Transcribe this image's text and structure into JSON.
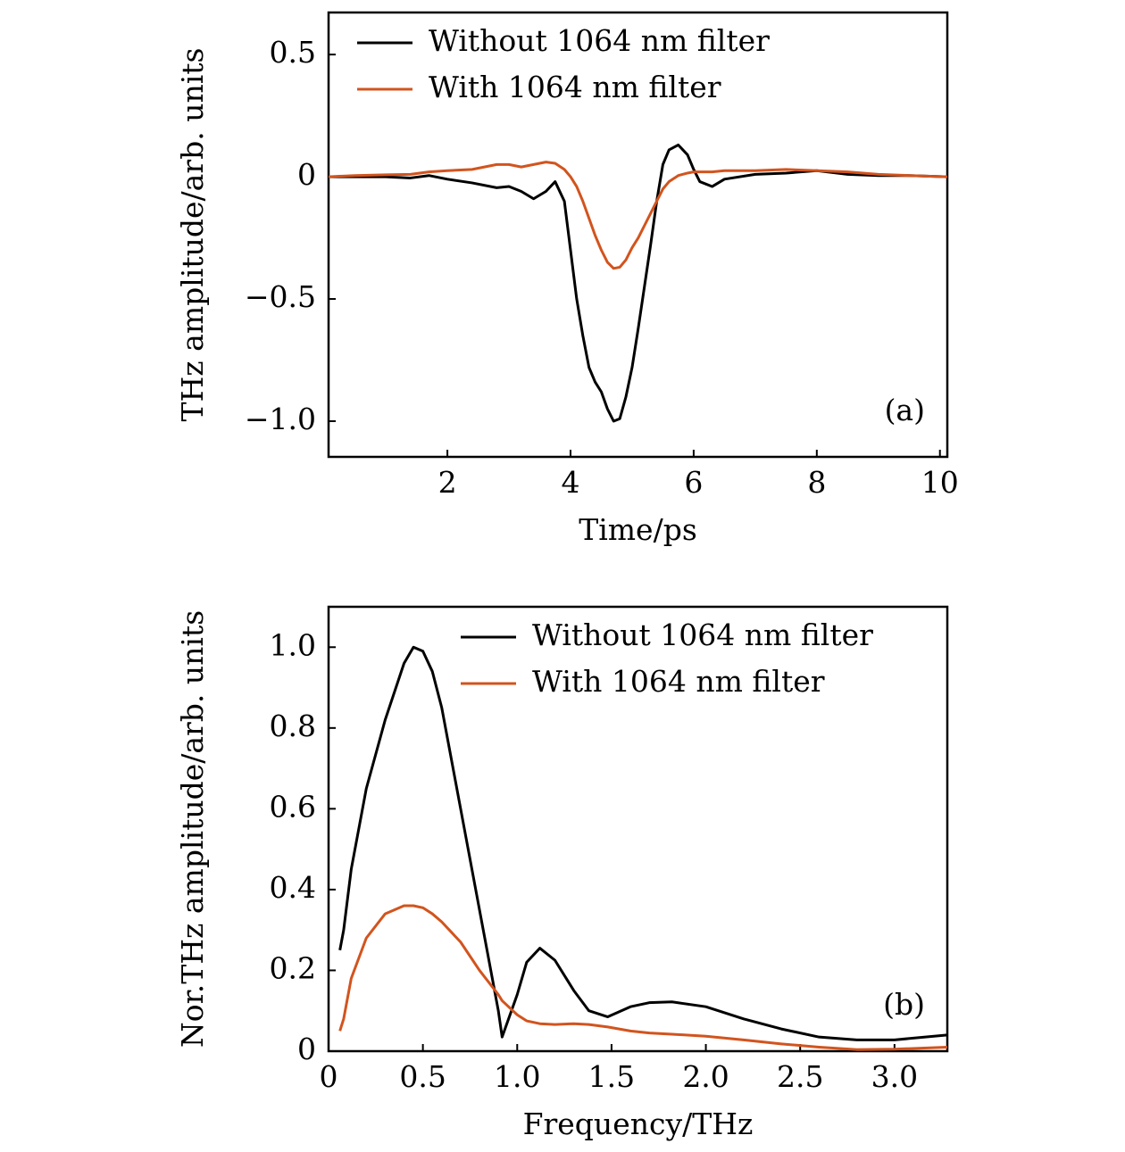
{
  "chart_data": [
    {
      "type": "line",
      "annotation": "(a)",
      "xlabel": "Time/ps",
      "ylabel": "THz amplitude/arb. units",
      "legend": "upper left",
      "x": [
        0.07,
        0.5,
        1.0,
        1.4,
        1.7,
        2.0,
        2.4,
        2.8,
        3.0,
        3.2,
        3.4,
        3.6,
        3.75,
        3.9,
        4.0,
        4.1,
        4.2,
        4.3,
        4.4,
        4.5,
        4.6,
        4.7,
        4.8,
        4.9,
        5.0,
        5.1,
        5.2,
        5.3,
        5.4,
        5.5,
        5.6,
        5.75,
        5.9,
        6.0,
        6.1,
        6.3,
        6.5,
        7.0,
        7.5,
        8.0,
        8.5,
        9.0,
        9.5,
        10.12
      ],
      "series": [
        {
          "name": "Without 1064 nm filter",
          "color": "#000000",
          "values": [
            0,
            0,
            0,
            -0.005,
            0.005,
            -0.01,
            -0.025,
            -0.045,
            -0.04,
            -0.06,
            -0.09,
            -0.06,
            -0.02,
            -0.1,
            -0.3,
            -0.5,
            -0.65,
            -0.78,
            -0.84,
            -0.88,
            -0.95,
            -1.0,
            -0.99,
            -0.9,
            -0.78,
            -0.62,
            -0.45,
            -0.28,
            -0.1,
            0.05,
            0.11,
            0.13,
            0.09,
            0.03,
            -0.02,
            -0.04,
            -0.01,
            0.01,
            0.015,
            0.025,
            0.01,
            0.005,
            0.005,
            0
          ]
        },
        {
          "name": "With 1064 nm filter",
          "color": "#d2541e",
          "values": [
            0,
            0.005,
            0.008,
            0.01,
            0.02,
            0.025,
            0.03,
            0.05,
            0.05,
            0.04,
            0.05,
            0.06,
            0.055,
            0.03,
            0.0,
            -0.04,
            -0.1,
            -0.17,
            -0.24,
            -0.3,
            -0.35,
            -0.375,
            -0.37,
            -0.34,
            -0.29,
            -0.25,
            -0.2,
            -0.15,
            -0.1,
            -0.05,
            -0.02,
            0.005,
            0.015,
            0.02,
            0.02,
            0.02,
            0.025,
            0.025,
            0.03,
            0.025,
            0.02,
            0.01,
            0.005,
            0
          ]
        }
      ],
      "xlim": [
        0.07,
        10.12
      ],
      "xticks": [
        2,
        4,
        6,
        8,
        10
      ],
      "ylim": [
        -1.146,
        0.672
      ],
      "yticks": [
        {
          "value": -1.0,
          "label": "−1.0"
        },
        {
          "value": -0.5,
          "label": "−0.5"
        },
        0,
        0.5
      ]
    },
    {
      "type": "line",
      "annotation": "(b)",
      "xlabel": "Frequency/THz",
      "ylabel": "Nor.THz amplitude/arb. units",
      "legend": "upper right",
      "x": [
        0.06,
        0.08,
        0.12,
        0.2,
        0.3,
        0.4,
        0.45,
        0.5,
        0.55,
        0.6,
        0.7,
        0.8,
        0.9,
        0.92,
        1.0,
        1.05,
        1.12,
        1.2,
        1.3,
        1.38,
        1.48,
        1.6,
        1.7,
        1.82,
        2.0,
        2.2,
        2.4,
        2.6,
        2.8,
        3.0,
        3.28
      ],
      "series": [
        {
          "name": "Without 1064 nm filter",
          "color": "#000000",
          "values": [
            0.25,
            0.3,
            0.45,
            0.65,
            0.82,
            0.96,
            1.0,
            0.99,
            0.94,
            0.85,
            0.6,
            0.35,
            0.1,
            0.035,
            0.14,
            0.22,
            0.255,
            0.225,
            0.15,
            0.1,
            0.085,
            0.11,
            0.12,
            0.122,
            0.11,
            0.08,
            0.055,
            0.035,
            0.028,
            0.028,
            0.04
          ]
        },
        {
          "name": "With 1064 nm filter",
          "color": "#d2541e",
          "values": [
            0.05,
            0.08,
            0.18,
            0.28,
            0.34,
            0.36,
            0.36,
            0.355,
            0.34,
            0.32,
            0.27,
            0.2,
            0.14,
            0.125,
            0.09,
            0.075,
            0.068,
            0.066,
            0.068,
            0.066,
            0.06,
            0.05,
            0.045,
            0.042,
            0.037,
            0.028,
            0.018,
            0.01,
            0.004,
            0.005,
            0.01
          ]
        }
      ],
      "xlim": [
        0,
        3.28
      ],
      "xticks": [
        0,
        0.5,
        {
          "value": 1.0,
          "label": "1.0"
        },
        1.5,
        {
          "value": 2.0,
          "label": "2.0"
        },
        2.5,
        {
          "value": 3.0,
          "label": "3.0"
        }
      ],
      "ylim": [
        0,
        1.1
      ],
      "yticks": [
        0,
        0.2,
        0.4,
        0.6,
        0.8,
        {
          "value": 1.0,
          "label": "1.0"
        }
      ]
    }
  ]
}
